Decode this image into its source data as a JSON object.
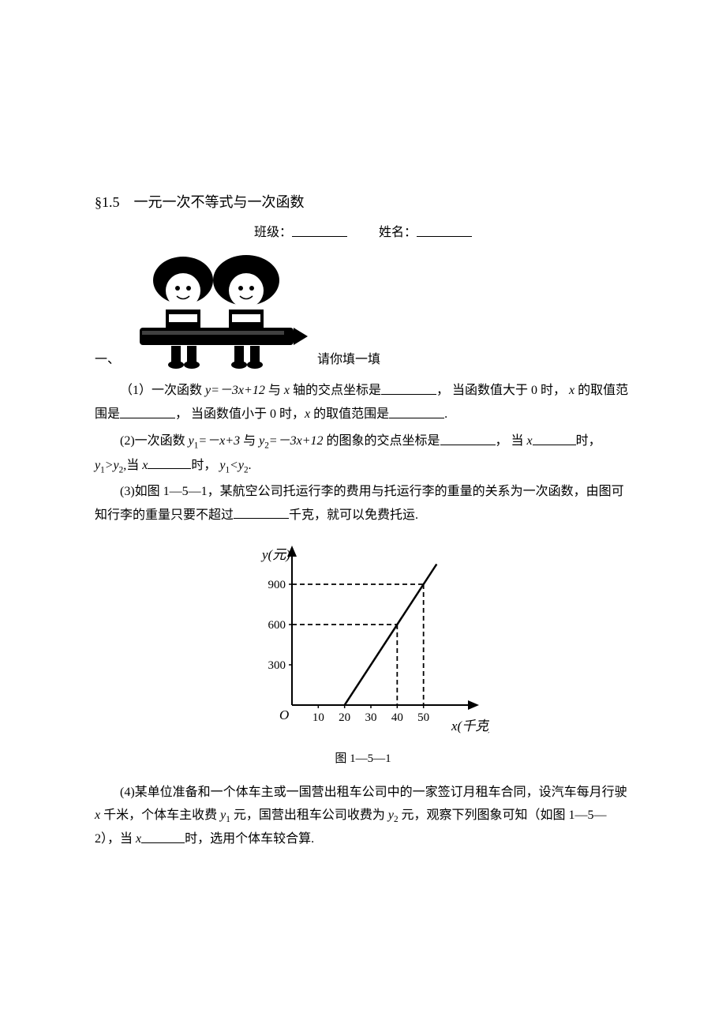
{
  "header": {
    "section_number": "§1.5",
    "section_title": "一元一次不等式与一次函数",
    "class_label": "班级：",
    "name_label": "姓名："
  },
  "intro": {
    "part_label": "一、",
    "instruction": "请你填一填"
  },
  "questions": {
    "q1_prefix": "（1）一次函数 ",
    "q1_func": "y=－3x+12",
    "q1_mid1": " 与 ",
    "q1_xaxis": "x",
    "q1_mid2": " 轴的交点坐标是",
    "q1_mid3": "， 当函数值大于 0 时， ",
    "q1_x2": "x",
    "q1_mid4": " 的取值范围是",
    "q1_mid5": "， 当函数值小于 0 时，",
    "q1_x3": "x",
    "q1_mid6": " 的取值范围是",
    "q1_end": ".",
    "q2_prefix": "(2)一次函数 ",
    "q2_f1a": "y",
    "q2_f1b": "1",
    "q2_f1c": "=－x+3",
    "q2_mid1": " 与 ",
    "q2_f2a": "y",
    "q2_f2b": "2",
    "q2_f2c": "=－3x+12",
    "q2_mid2": " 的图象的交点坐标是",
    "q2_mid3": "， 当 ",
    "q2_x1": "x",
    "q2_mid4": "时，",
    "q2_cmp1a": "y",
    "q2_cmp1b": "1",
    "q2_cmp1c": ">y",
    "q2_cmp1d": "2",
    "q2_mid5": ",当 ",
    "q2_x2": "x",
    "q2_mid6": "时， ",
    "q2_cmp2a": "y",
    "q2_cmp2b": "1",
    "q2_cmp2c": "<y",
    "q2_cmp2d": "2",
    "q2_end": ".",
    "q3_line1": "(3)如图 1—5—1，某航空公司托运行李的费用与托运行李的重量的关系为一次函数，由图可知行李的重量只要不超过",
    "q3_line2": "千克，就可以免费托运.",
    "q4_prefix": "(4)某单位准备和一个体车主或一国营出租车公司中的一家签订月租车合同，设汽车每月行驶 ",
    "q4_x": "x",
    "q4_mid1": " 千米，个体车主收费 ",
    "q4_y1a": "y",
    "q4_y1b": "1",
    "q4_mid2": " 元，国营出租车公司收费为 ",
    "q4_y2a": "y",
    "q4_y2b": "2",
    "q4_mid3": " 元，观察下列图象可知（如图 1—5—2），当 ",
    "q4_x2": "x",
    "q4_mid4": "时，选用个体车较合算."
  },
  "chart": {
    "caption": "图 1—5—1",
    "y_label": "y(元)",
    "x_label": "x(千克)",
    "origin": "O",
    "y_ticks": [
      "300",
      "600",
      "900"
    ],
    "x_ticks": [
      "10",
      "20",
      "30",
      "40",
      "50"
    ],
    "y_tick_values": [
      300,
      600,
      900
    ],
    "x_tick_values": [
      10,
      20,
      30,
      40,
      50
    ],
    "line_color": "#000000",
    "axis_color": "#000000",
    "dash_color": "#000000",
    "background_color": "#ffffff",
    "x_range": [
      0,
      60
    ],
    "y_range": [
      0,
      1000
    ],
    "line_points": [
      [
        20,
        0
      ],
      [
        55,
        1050
      ]
    ],
    "dash_lines": [
      {
        "x": 40,
        "y": 600
      },
      {
        "x": 50,
        "y": 900
      }
    ],
    "axis_stroke_width": 2,
    "line_stroke_width": 2.5,
    "dash_pattern": "6,4",
    "label_fontsize": 17,
    "tick_fontsize": 15
  }
}
